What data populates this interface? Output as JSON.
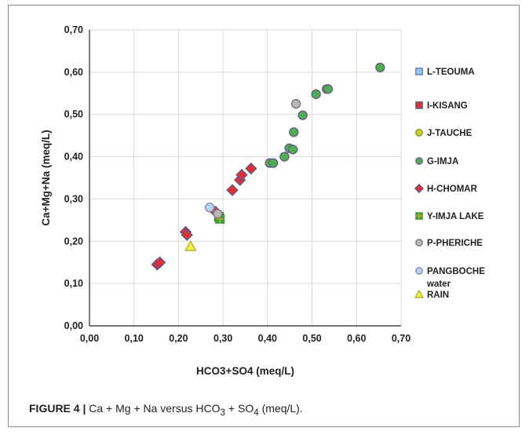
{
  "chart_data": {
    "type": "scatter",
    "xlabel": "HCO3+SO4 (meq/L)",
    "ylabel": "Ca+Mg+Na (meq/L)",
    "xlim": [
      0,
      0.7
    ],
    "ylim": [
      0,
      0.7
    ],
    "x_ticks": [
      "0,00",
      "0,10",
      "0,20",
      "0,30",
      "0,40",
      "0,50",
      "0,60",
      "0,70"
    ],
    "y_ticks": [
      "0,00",
      "0,10",
      "0,20",
      "0,30",
      "0,40",
      "0,50",
      "0,60",
      "0,70"
    ],
    "grid": true,
    "legend_position": "right",
    "series": [
      {
        "name": "L-TEOUMA",
        "marker": "square",
        "color": "#9dc3e6",
        "stroke": "#4a78b5",
        "points": []
      },
      {
        "name": "I-KISANG",
        "marker": "square",
        "color": "#e03030",
        "stroke": "#4a5f9a",
        "points": []
      },
      {
        "name": "J-TAUCHE",
        "marker": "circle",
        "color": "#c8d42a",
        "stroke": "#8a9420",
        "points": []
      },
      {
        "name": "G-IMJA",
        "marker": "circle",
        "color": "#4caf50",
        "stroke": "#6a5e8a",
        "points": [
          [
            0.405,
            0.385
          ],
          [
            0.413,
            0.385
          ],
          [
            0.438,
            0.4
          ],
          [
            0.449,
            0.42
          ],
          [
            0.457,
            0.417
          ],
          [
            0.459,
            0.458
          ],
          [
            0.479,
            0.498
          ],
          [
            0.509,
            0.548
          ],
          [
            0.533,
            0.56
          ],
          [
            0.536,
            0.56
          ],
          [
            0.653,
            0.611
          ]
        ]
      },
      {
        "name": "H-CHOMAR",
        "marker": "diamond",
        "color": "#e03030",
        "stroke": "#4a5f9a",
        "points": [
          [
            0.152,
            0.145
          ],
          [
            0.158,
            0.15
          ],
          [
            0.216,
            0.222
          ],
          [
            0.219,
            0.215
          ],
          [
            0.283,
            0.27
          ],
          [
            0.321,
            0.321
          ],
          [
            0.338,
            0.345
          ],
          [
            0.342,
            0.357
          ],
          [
            0.363,
            0.372
          ]
        ]
      },
      {
        "name": "Y-IMJA LAKE",
        "marker": "square-cross",
        "color": "#3aaa35",
        "stroke": "#e0a030",
        "points": [
          [
            0.291,
            0.258
          ],
          [
            0.293,
            0.253
          ]
        ]
      },
      {
        "name": "P-PHERICHE",
        "marker": "circle",
        "color": "#b8b8b8",
        "stroke": "#7a7a7a",
        "points": [
          [
            0.464,
            0.525
          ],
          [
            0.288,
            0.265
          ]
        ]
      },
      {
        "name": "PANGBOCHE water",
        "marker": "circle",
        "color": "#b8d4ec",
        "stroke": "#8a8ab0",
        "points": [
          [
            0.27,
            0.28
          ]
        ]
      },
      {
        "name": "RAIN",
        "marker": "triangle",
        "color": "#f0f040",
        "stroke": "#a8a820",
        "points": [
          [
            0.227,
            0.188
          ]
        ]
      }
    ]
  },
  "caption": {
    "figure_label": "FIGURE 4 |",
    "text": "Ca + Mg + Na versus HCO",
    "sub1": "3",
    "mid": " + SO",
    "sub2": "4",
    "end": " (meq/L)."
  }
}
